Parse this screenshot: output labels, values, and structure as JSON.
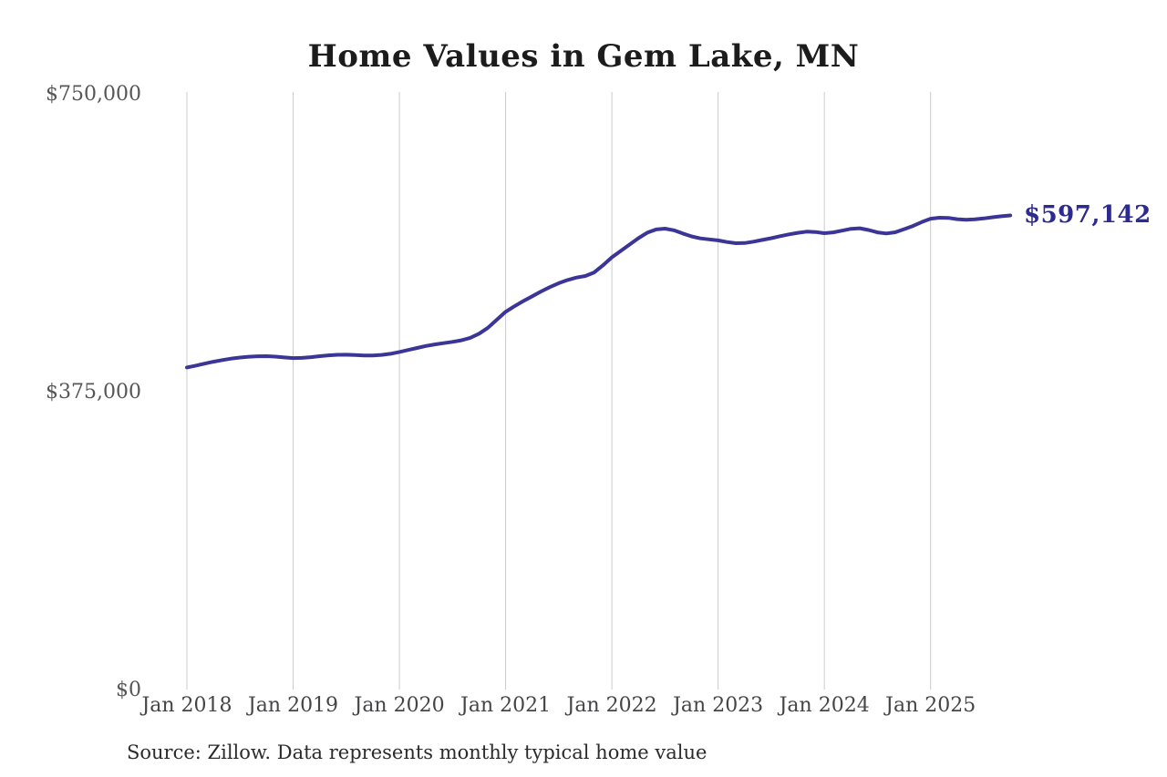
{
  "title": "Home Values in Gem Lake, MN",
  "end_label": "$597,142",
  "source_note": "Source: Zillow. Data represents monthly typical home value",
  "y_axis": {
    "labels": [
      "$750,000",
      "$375,000",
      "$0"
    ]
  },
  "x_axis": {
    "labels": [
      "Jan 2018",
      "Jan 2019",
      "Jan 2020",
      "Jan 2021",
      "Jan 2022",
      "Jan 2023",
      "Jan 2024",
      "Jan 2025"
    ]
  },
  "colors": {
    "line": "#3b3597",
    "end_label": "#2e2b90",
    "grid": "#cbcbcb",
    "title": "#1c1c1c",
    "axis_text": "#4f4f52",
    "background": "#ffffff"
  },
  "chart_data": {
    "type": "line",
    "title": "Home Values in Gem Lake, MN",
    "xlabel": "",
    "ylabel": "",
    "ylim": [
      0,
      750000
    ],
    "yticks": [
      0,
      375000,
      750000
    ],
    "ytick_labels": [
      "$0",
      "$375,000",
      "$750,000"
    ],
    "xtick_labels": [
      "Jan 2018",
      "Jan 2019",
      "Jan 2020",
      "Jan 2021",
      "Jan 2022",
      "Jan 2023",
      "Jan 2024",
      "Jan 2025"
    ],
    "grid": "vertical-only",
    "legend_position": "none",
    "series_name": "Monthly typical home value (USD)",
    "frequency": "monthly",
    "start_month": "Jan 2018",
    "end_month": "Oct 2025",
    "final_value": 597142,
    "final_value_label": "$597,142",
    "x": [
      "Jan 2018",
      "Feb 2018",
      "Mar 2018",
      "Apr 2018",
      "May 2018",
      "Jun 2018",
      "Jul 2018",
      "Aug 2018",
      "Sep 2018",
      "Oct 2018",
      "Nov 2018",
      "Dec 2018",
      "Jan 2019",
      "Feb 2019",
      "Mar 2019",
      "Apr 2019",
      "May 2019",
      "Jun 2019",
      "Jul 2019",
      "Aug 2019",
      "Sep 2019",
      "Oct 2019",
      "Nov 2019",
      "Dec 2019",
      "Jan 2020",
      "Feb 2020",
      "Mar 2020",
      "Apr 2020",
      "May 2020",
      "Jun 2020",
      "Jul 2020",
      "Aug 2020",
      "Sep 2020",
      "Oct 2020",
      "Nov 2020",
      "Dec 2020",
      "Jan 2021",
      "Feb 2021",
      "Mar 2021",
      "Apr 2021",
      "May 2021",
      "Jun 2021",
      "Jul 2021",
      "Aug 2021",
      "Sep 2021",
      "Oct 2021",
      "Nov 2021",
      "Dec 2021",
      "Jan 2022",
      "Feb 2022",
      "Mar 2022",
      "Apr 2022",
      "May 2022",
      "Jun 2022",
      "Jul 2022",
      "Aug 2022",
      "Sep 2022",
      "Oct 2022",
      "Nov 2022",
      "Dec 2022",
      "Jan 2023",
      "Feb 2023",
      "Mar 2023",
      "Apr 2023",
      "May 2023",
      "Jun 2023",
      "Jul 2023",
      "Aug 2023",
      "Sep 2023",
      "Oct 2023",
      "Nov 2023",
      "Dec 2023",
      "Jan 2024",
      "Feb 2024",
      "Mar 2024",
      "Apr 2024",
      "May 2024",
      "Jun 2024",
      "Jul 2024",
      "Aug 2024",
      "Sep 2024",
      "Oct 2024",
      "Nov 2024",
      "Dec 2024",
      "Jan 2025",
      "Feb 2025",
      "Mar 2025",
      "Apr 2025",
      "May 2025",
      "Jun 2025",
      "Jul 2025",
      "Aug 2025",
      "Sep 2025",
      "Oct 2025"
    ],
    "values": [
      406000,
      408300,
      410800,
      413200,
      415300,
      417100,
      418500,
      419500,
      420100,
      420200,
      419600,
      418600,
      417800,
      418100,
      419000,
      420200,
      421300,
      422000,
      422100,
      421700,
      421200,
      421200,
      421800,
      423200,
      425500,
      428000,
      430500,
      433000,
      435000,
      436600,
      438200,
      440200,
      443200,
      448500,
      456000,
      466000,
      476000,
      483000,
      489500,
      495500,
      501500,
      507000,
      512000,
      516000,
      519000,
      521000,
      525500,
      534500,
      544500,
      552500,
      560500,
      568500,
      575500,
      579500,
      580500,
      578500,
      574500,
      570800,
      568300,
      567000,
      565800,
      563700,
      562200,
      562500,
      564200,
      566300,
      568500,
      571000,
      573300,
      575300,
      576800,
      576300,
      574800,
      575800,
      578000,
      580300,
      581000,
      578800,
      575800,
      574500,
      576000,
      579800,
      583800,
      588800,
      593000,
      594300,
      594000,
      592400,
      591800,
      592300,
      593400,
      594800,
      596100,
      597142
    ]
  }
}
